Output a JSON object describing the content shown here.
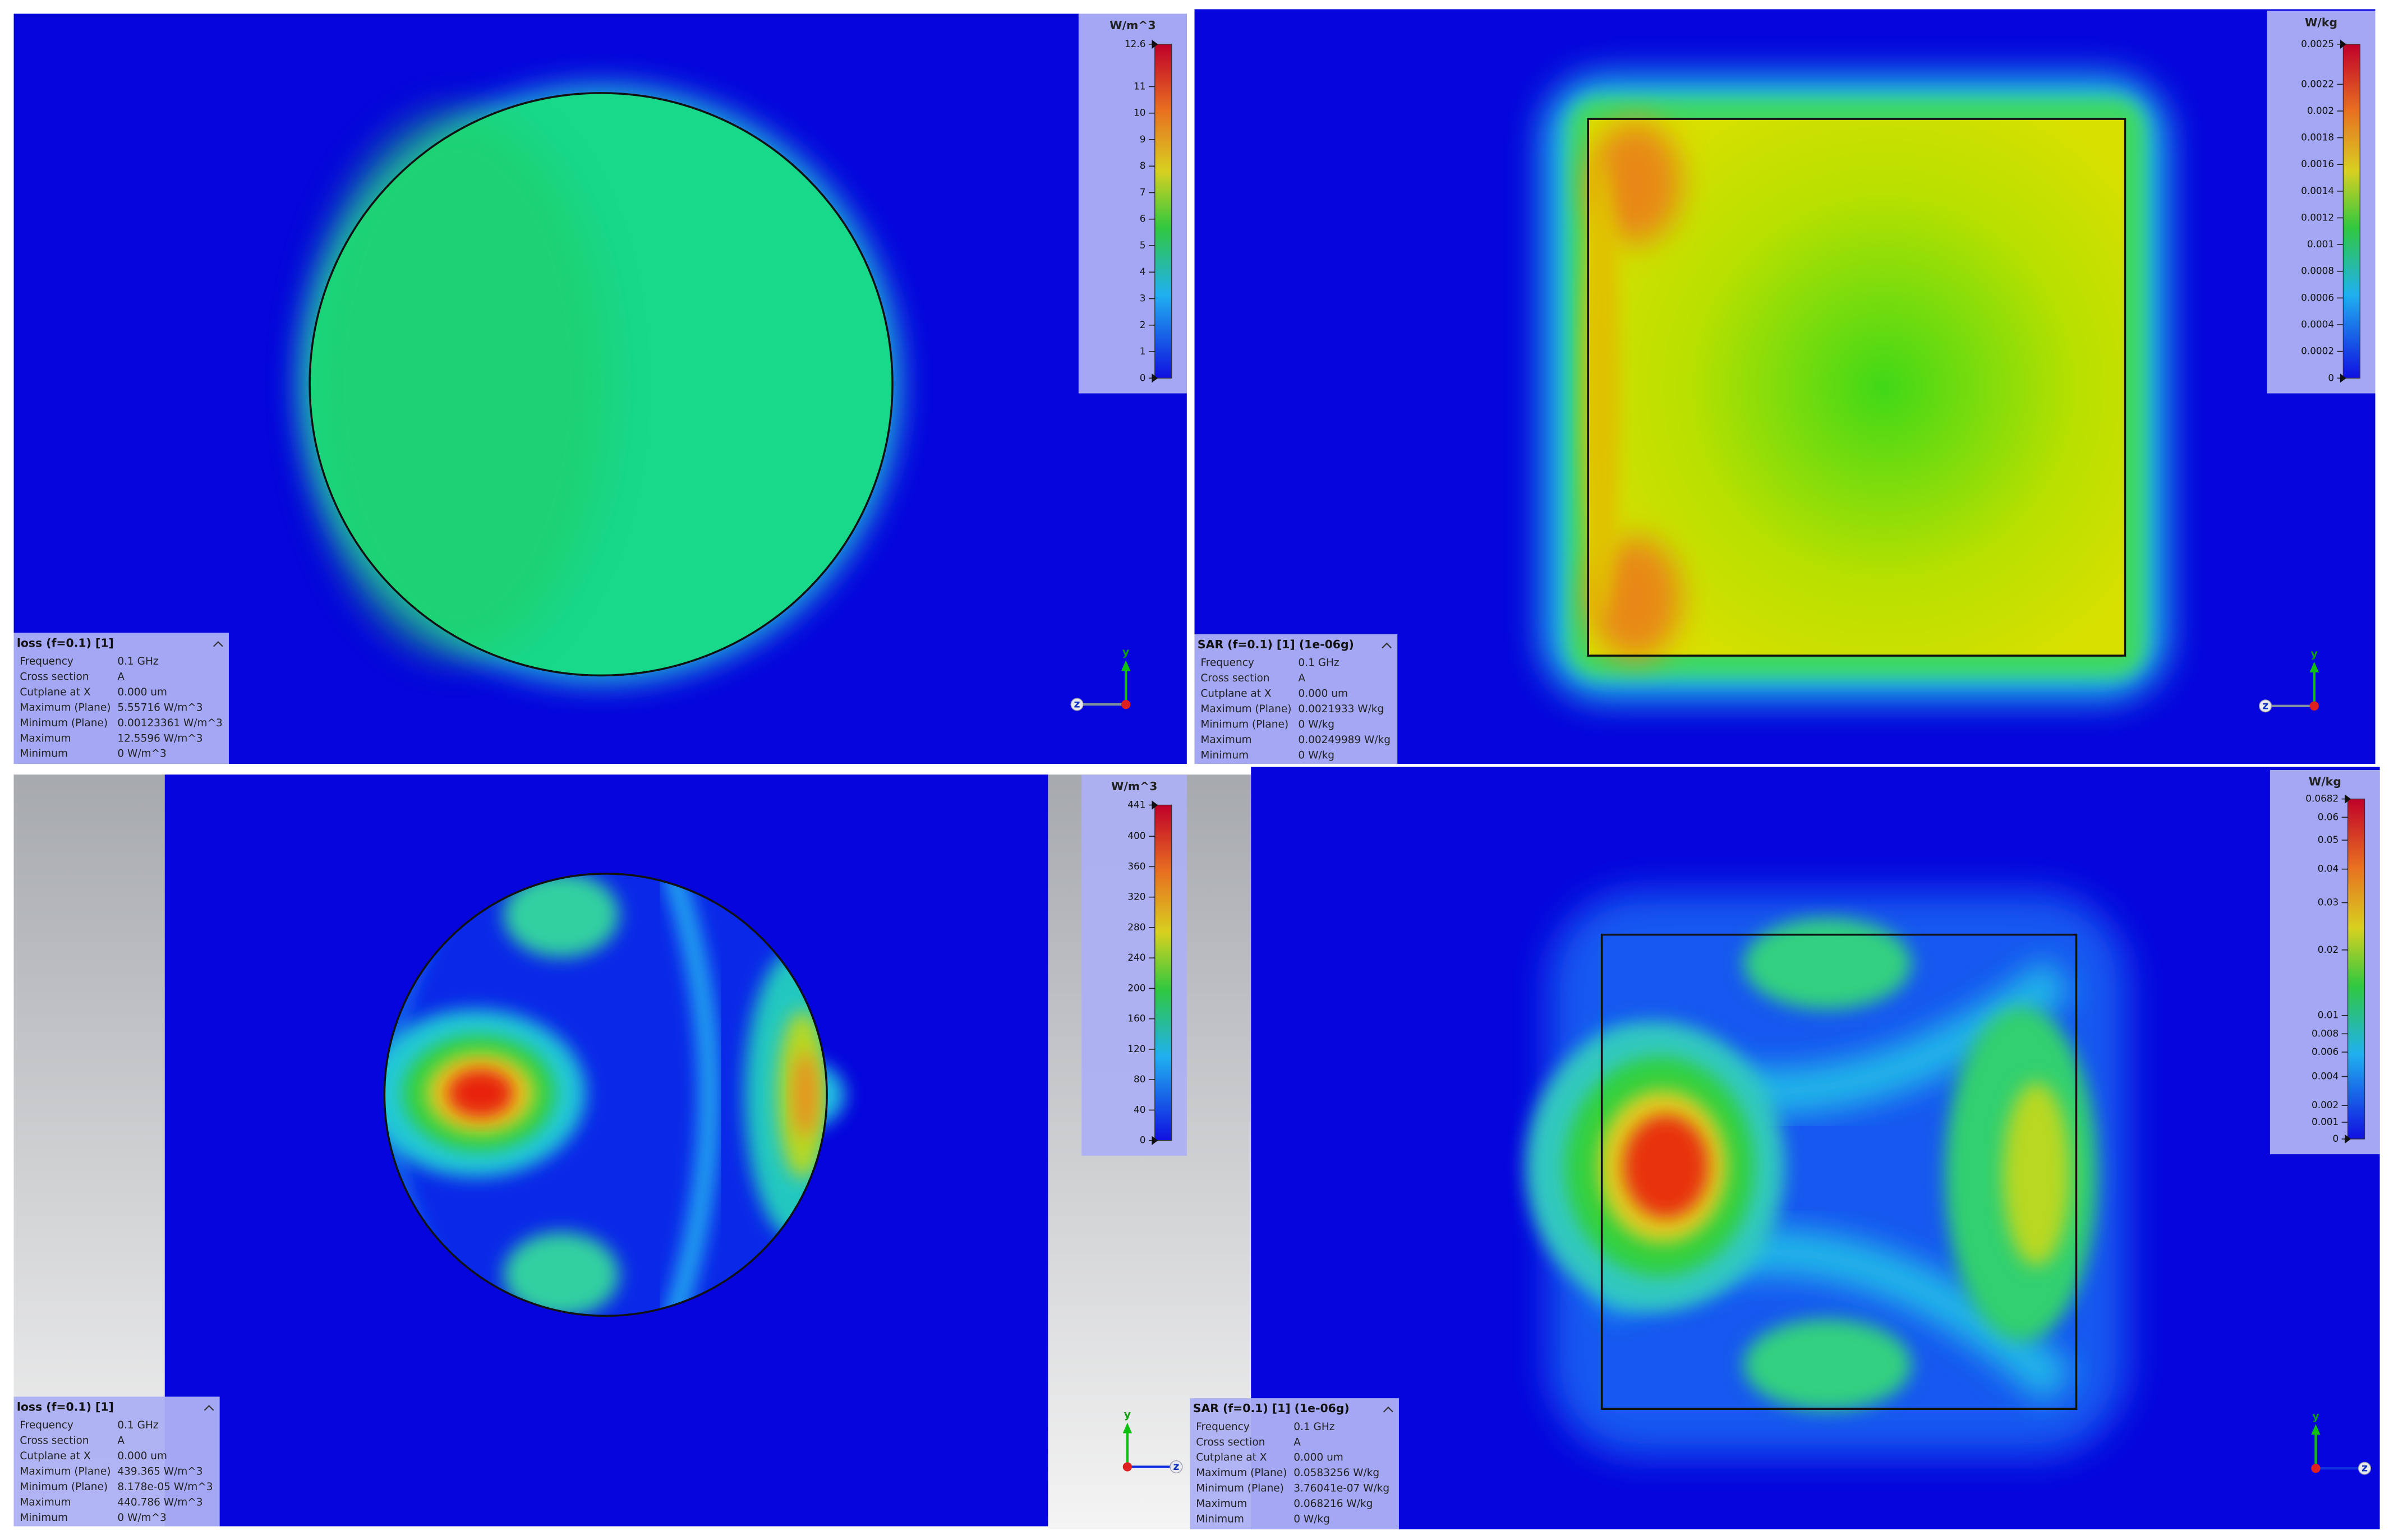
{
  "panels": [
    {
      "unit": "W/m^3",
      "colorbar_ticks": [
        "12.6",
        "11",
        "10",
        "9",
        "8",
        "7",
        "6",
        "5",
        "4",
        "3",
        "2",
        "1",
        "0"
      ],
      "info": {
        "title": "loss (f=0.1) [1]",
        "rows": [
          [
            "Frequency",
            "0.1 GHz"
          ],
          [
            "Cross section",
            "A"
          ],
          [
            "Cutplane at X",
            "0.000 um"
          ],
          [
            "Maximum (Plane)",
            "5.55716 W/m^3"
          ],
          [
            "Minimum (Plane)",
            "0.00123361 W/m^3"
          ],
          [
            "Maximum",
            "12.5596 W/m^3"
          ],
          [
            "Minimum",
            "0 W/m^3"
          ]
        ]
      },
      "axis_labels": [
        "y",
        "z"
      ]
    },
    {
      "unit": "W/kg",
      "colorbar_ticks": [
        "0.0025",
        "0.0022",
        "0.002",
        "0.0018",
        "0.0016",
        "0.0014",
        "0.0012",
        "0.001",
        "0.0008",
        "0.0006",
        "0.0004",
        "0.0002",
        "0"
      ],
      "info": {
        "title": "SAR (f=0.1) [1] (1e-06g)",
        "rows": [
          [
            "Frequency",
            "0.1 GHz"
          ],
          [
            "Cross section",
            "A"
          ],
          [
            "Cutplane at X",
            "0.000 um"
          ],
          [
            "Maximum (Plane)",
            "0.0021933 W/kg"
          ],
          [
            "Minimum (Plane)",
            "0 W/kg"
          ],
          [
            "Maximum",
            "0.00249989 W/kg"
          ],
          [
            "Minimum",
            "0 W/kg"
          ]
        ]
      },
      "axis_labels": [
        "y",
        "z"
      ]
    },
    {
      "unit": "W/m^3",
      "colorbar_ticks": [
        "441",
        "400",
        "360",
        "320",
        "280",
        "240",
        "200",
        "160",
        "120",
        "80",
        "40",
        "0"
      ],
      "info": {
        "title": "loss (f=0.1) [1]",
        "rows": [
          [
            "Frequency",
            "0.1 GHz"
          ],
          [
            "Cross section",
            "A"
          ],
          [
            "Cutplane at X",
            "0.000 um"
          ],
          [
            "Maximum (Plane)",
            "439.365 W/m^3"
          ],
          [
            "Minimum (Plane)",
            "8.178e-05 W/m^3"
          ],
          [
            "Maximum",
            "440.786 W/m^3"
          ],
          [
            "Minimum",
            "0 W/m^3"
          ]
        ]
      },
      "axis_labels": [
        "y",
        "z"
      ]
    },
    {
      "unit": "W/kg",
      "colorbar_ticks": [
        "0.0682",
        "0.06",
        "0.05",
        "0.04",
        "0.03",
        "0.02",
        "0.01",
        "0.008",
        "0.006",
        "0.004",
        "0.002",
        "0.001",
        "0"
      ],
      "info": {
        "title": "SAR (f=0.1) [1] (1e-06g)",
        "rows": [
          [
            "Frequency",
            "0.1 GHz"
          ],
          [
            "Cross section",
            "A"
          ],
          [
            "Cutplane at X",
            "0.000 um"
          ],
          [
            "Maximum (Plane)",
            "0.0583256 W/kg"
          ],
          [
            "Minimum (Plane)",
            "3.76041e-07 W/kg"
          ],
          [
            "Maximum",
            "0.068216 W/kg"
          ],
          [
            "Minimum",
            "0 W/kg"
          ]
        ]
      },
      "axis_labels": [
        "y",
        "z"
      ]
    }
  ]
}
